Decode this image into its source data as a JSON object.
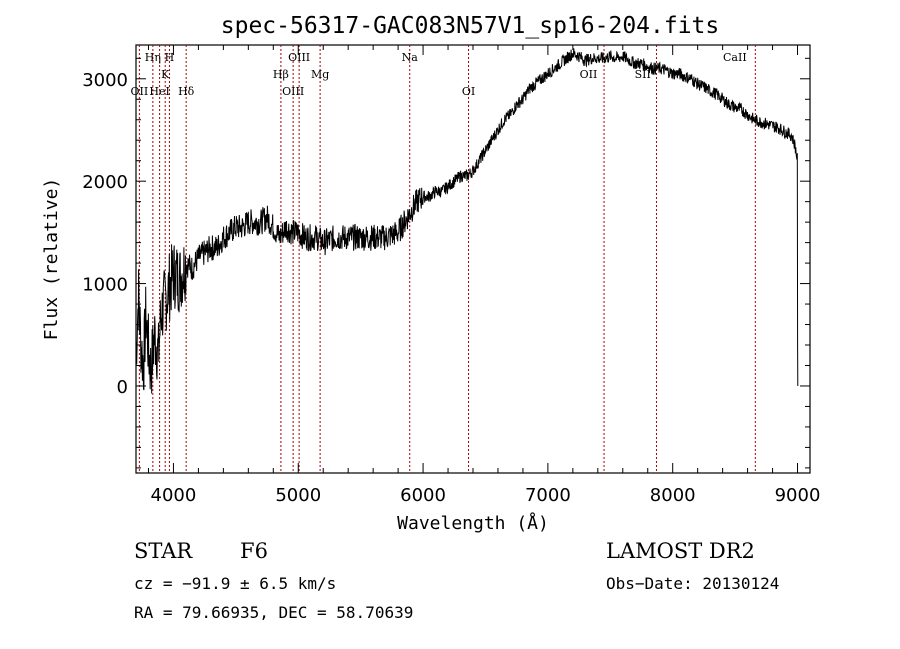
{
  "chart_data": {
    "type": "line",
    "title": "spec-56317-GAC083N57V1_sp16-204.fits",
    "xlabel": "Wavelength (Å)",
    "ylabel": "Flux (relative)",
    "xlim": [
      3700,
      9100
    ],
    "ylim": [
      -850,
      3330
    ],
    "xticks": [
      4000,
      5000,
      6000,
      7000,
      8000,
      9000
    ],
    "yticks": [
      0,
      1000,
      2000,
      3000
    ],
    "grid": false,
    "series": [
      {
        "x": [
          3700,
          3720,
          3740,
          3760,
          3780,
          3800,
          3820,
          3850,
          3880,
          3900,
          3950,
          4000,
          4050,
          4100,
          4150,
          4200,
          4250,
          4300,
          4350,
          4400,
          4450,
          4500,
          4550,
          4600,
          4650,
          4700,
          4750,
          4800,
          4850,
          4900,
          4950,
          5000,
          5050,
          5100,
          5150,
          5200,
          5300,
          5400,
          5500,
          5600,
          5700,
          5800,
          5850,
          5900,
          5950,
          6000,
          6050,
          6100,
          6150,
          6200,
          6250,
          6300,
          6350,
          6400,
          6450,
          6500,
          6550,
          6600,
          6650,
          6700,
          6750,
          6800,
          6850,
          6900,
          6950,
          7000,
          7050,
          7100,
          7150,
          7200,
          7250,
          7300,
          7350,
          7400,
          7450,
          7500,
          7550,
          7600,
          7650,
          7700,
          7750,
          7800,
          7850,
          7900,
          7950,
          8000,
          8050,
          8100,
          8150,
          8200,
          8250,
          8300,
          8350,
          8400,
          8450,
          8500,
          8550,
          8600,
          8650,
          8700,
          8750,
          8800,
          8850,
          8900,
          8950,
          8980,
          9000
        ],
        "y": [
          300,
          900,
          400,
          200,
          700,
          350,
          150,
          500,
          300,
          700,
          900,
          1100,
          1050,
          1200,
          1150,
          1250,
          1300,
          1350,
          1350,
          1450,
          1500,
          1550,
          1550,
          1600,
          1600,
          1600,
          1650,
          1550,
          1450,
          1550,
          1500,
          1500,
          1450,
          1450,
          1450,
          1400,
          1450,
          1450,
          1450,
          1450,
          1450,
          1500,
          1600,
          1700,
          1800,
          1850,
          1850,
          1900,
          1900,
          1950,
          2000,
          2050,
          2050,
          2100,
          2200,
          2300,
          2400,
          2500,
          2600,
          2650,
          2750,
          2800,
          2900,
          2950,
          3000,
          3050,
          3100,
          3150,
          3200,
          3250,
          3220,
          3180,
          3200,
          3200,
          3200,
          3220,
          3200,
          3220,
          3180,
          3150,
          3150,
          3120,
          3100,
          3100,
          3080,
          3050,
          3050,
          3020,
          3000,
          2950,
          2920,
          2880,
          2850,
          2800,
          2750,
          2720,
          2700,
          2650,
          2600,
          2580,
          2560,
          2540,
          2520,
          2480,
          2450,
          2350,
          2200
        ]
      }
    ],
    "line_labels": [
      {
        "label": "OII",
        "x": 3727,
        "row": 3
      },
      {
        "label": "Hη",
        "x": 3835,
        "row": 1
      },
      {
        "label": "HeI",
        "x": 3889,
        "row": 3
      },
      {
        "label": "K",
        "x": 3934,
        "row": 2
      },
      {
        "label": "H",
        "x": 3968,
        "row": 1
      },
      {
        "label": "Hδ",
        "x": 4102,
        "row": 3
      },
      {
        "label": "Hβ",
        "x": 4861,
        "row": 2
      },
      {
        "label": "OIII",
        "x": 4959,
        "row": 3
      },
      {
        "label": "OIII",
        "x": 5007,
        "row": 1
      },
      {
        "label": "Mg",
        "x": 5175,
        "row": 2
      },
      {
        "label": "Na",
        "x": 5893,
        "row": 1
      },
      {
        "label": "OI",
        "x": 6364,
        "row": 3
      },
      {
        "label": "OII",
        "x": 7325,
        "row": 2
      },
      {
        "label": "SII",
        "x": 7760,
        "row": 2
      },
      {
        "label": "CaII",
        "x": 8498,
        "row": 1
      }
    ],
    "line_marks_x": [
      3727,
      3835,
      3889,
      3934,
      3968,
      4102,
      4861,
      4959,
      5007,
      5175,
      5893,
      6364,
      7450,
      7870,
      8662
    ],
    "line_mark_color": "#aa0000",
    "series_color": "#000000"
  },
  "info": {
    "class_label": "STAR",
    "subclass": "F6",
    "survey": "LAMOST DR2",
    "cz": "cz = −91.9 ± 6.5 km/s",
    "obs_date": "Obs−Date: 20130124",
    "radec": "RA =  79.66935, DEC =  58.70639"
  }
}
